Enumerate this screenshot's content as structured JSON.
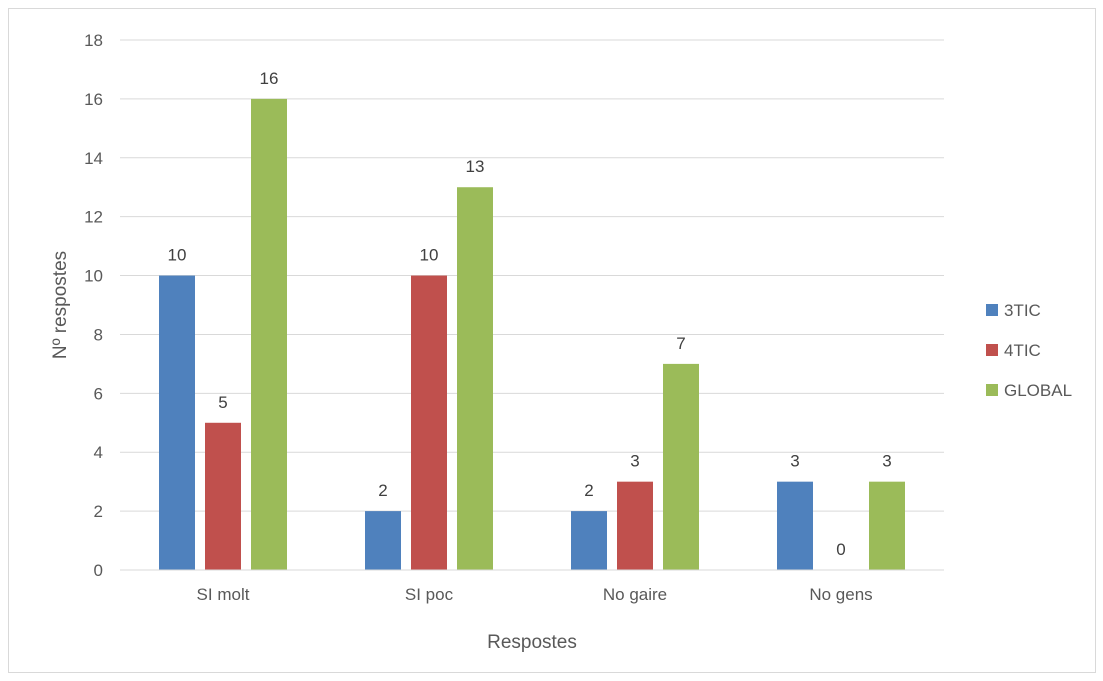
{
  "chart_data": {
    "type": "bar",
    "title": "",
    "xlabel": "Respostes",
    "ylabel": "Nº respostes",
    "categories": [
      "SI molt",
      "SI poc",
      "No gaire",
      "No gens"
    ],
    "series": [
      {
        "name": "3TIC",
        "values": [
          10,
          2,
          2,
          3
        ],
        "color": "#4f81bd"
      },
      {
        "name": "4TIC",
        "values": [
          5,
          10,
          3,
          0
        ],
        "color": "#c0504d"
      },
      {
        "name": "GLOBAL",
        "values": [
          16,
          13,
          7,
          3
        ],
        "color": "#9bbb59"
      }
    ],
    "ylim": [
      0,
      18
    ],
    "yticks": [
      0,
      2,
      4,
      6,
      8,
      10,
      12,
      14,
      16,
      18
    ],
    "grid": true,
    "legend_position": "right",
    "data_labels": true
  }
}
